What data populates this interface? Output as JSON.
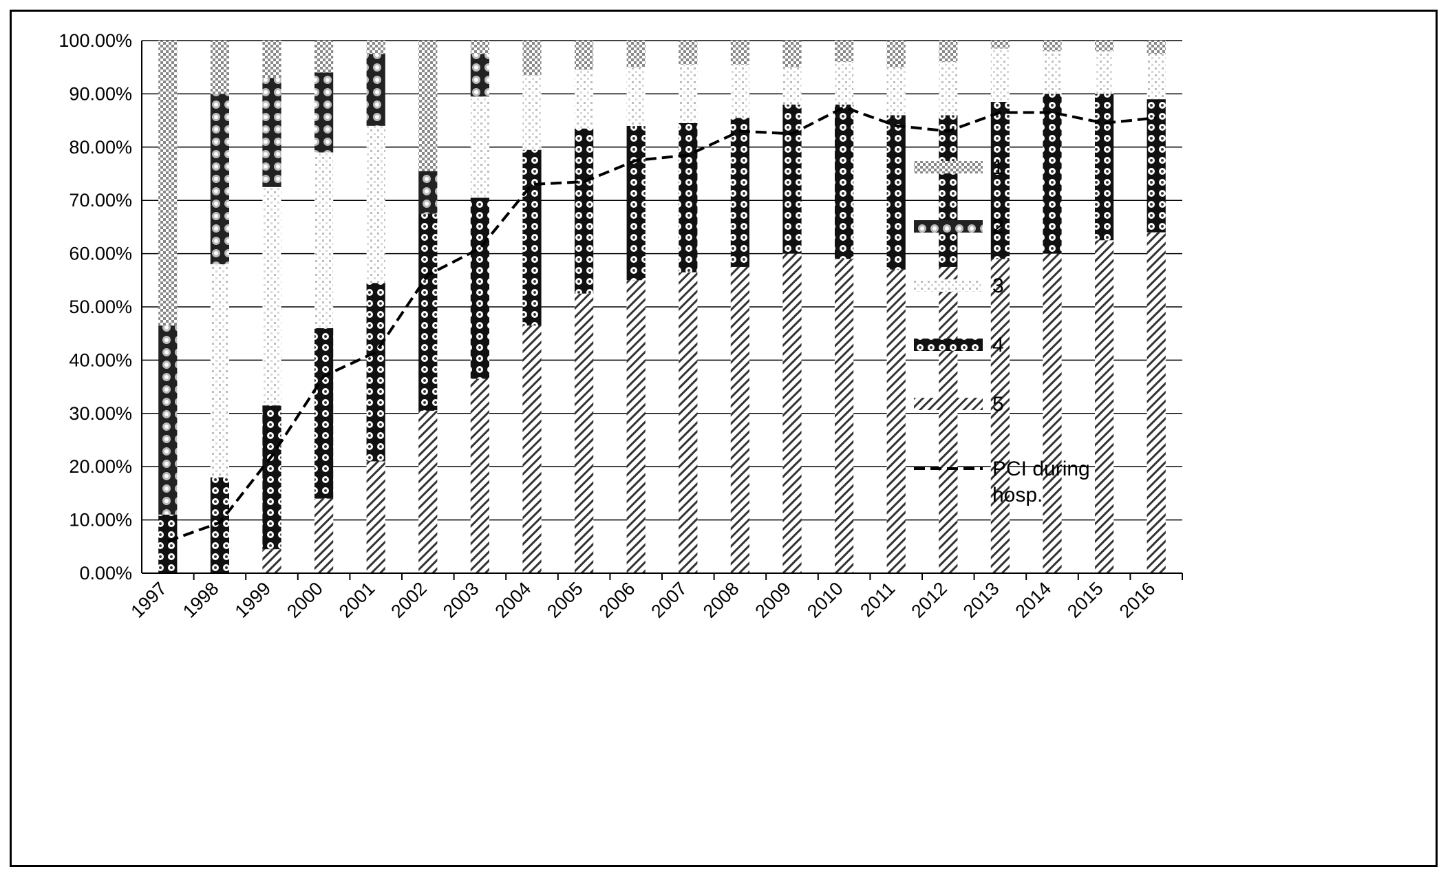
{
  "chart_data": {
    "type": "bar",
    "stacked": true,
    "categories": [
      "1997",
      "1998",
      "1999",
      "2000",
      "2001",
      "2002",
      "2003",
      "2004",
      "2005",
      "2006",
      "2007",
      "2008",
      "2009",
      "2010",
      "2011",
      "2012",
      "2013",
      "2014",
      "2015",
      "2016"
    ],
    "series": [
      {
        "name": "5",
        "values": [
          0,
          0,
          4.5,
          14,
          21,
          30.5,
          36.5,
          46.5,
          52.5,
          55,
          56.5,
          57.5,
          60,
          59,
          57,
          57.5,
          59,
          60,
          62.5,
          64
        ]
      },
      {
        "name": "4",
        "values": [
          11,
          18,
          27,
          32,
          33.5,
          37,
          34,
          33,
          31,
          29,
          28,
          28,
          28,
          29,
          29,
          28.5,
          29.5,
          30,
          27.5,
          25
        ]
      },
      {
        "name": "3",
        "values": [
          0,
          40,
          41,
          33,
          29.5,
          0,
          19,
          14,
          11,
          11,
          11,
          10,
          7,
          8,
          9,
          10,
          10,
          8,
          8,
          8.5
        ]
      },
      {
        "name": "2",
        "values": [
          35.5,
          32,
          20.5,
          15,
          13.5,
          8,
          8,
          0,
          0,
          0,
          0,
          0,
          0,
          0,
          0,
          0,
          0,
          0,
          0,
          0
        ]
      },
      {
        "name": "1",
        "values": [
          53.5,
          10,
          7,
          6,
          2.5,
          24.5,
          2.5,
          6.5,
          5.5,
          5,
          4.5,
          4.5,
          5,
          4,
          5,
          4,
          1.5,
          2,
          2,
          2.5
        ]
      }
    ],
    "line": {
      "name": "PCI during hosp.",
      "values": [
        6,
        9.5,
        22,
        37,
        41.5,
        56,
        61,
        73,
        73.5,
        77.5,
        78.5,
        83,
        82.5,
        87.5,
        84,
        83,
        86.5,
        86.5,
        84.5,
        85.5
      ],
      "style": "dashed"
    },
    "ylim": [
      0,
      100
    ],
    "yticks": [
      "0.00%",
      "10.00%",
      "20.00%",
      "30.00%",
      "40.00%",
      "50.00%",
      "60.00%",
      "70.00%",
      "80.00%",
      "90.00%",
      "100.00%"
    ],
    "legend": {
      "position": "right",
      "entries": [
        "1",
        "2",
        "3",
        "4",
        "5"
      ],
      "line_entry_lines": [
        "PCI during",
        "hosp."
      ]
    },
    "grid": true,
    "colors": {
      "gridline": "#000000",
      "line": "#000000",
      "bar_pattern": "#000000"
    }
  }
}
